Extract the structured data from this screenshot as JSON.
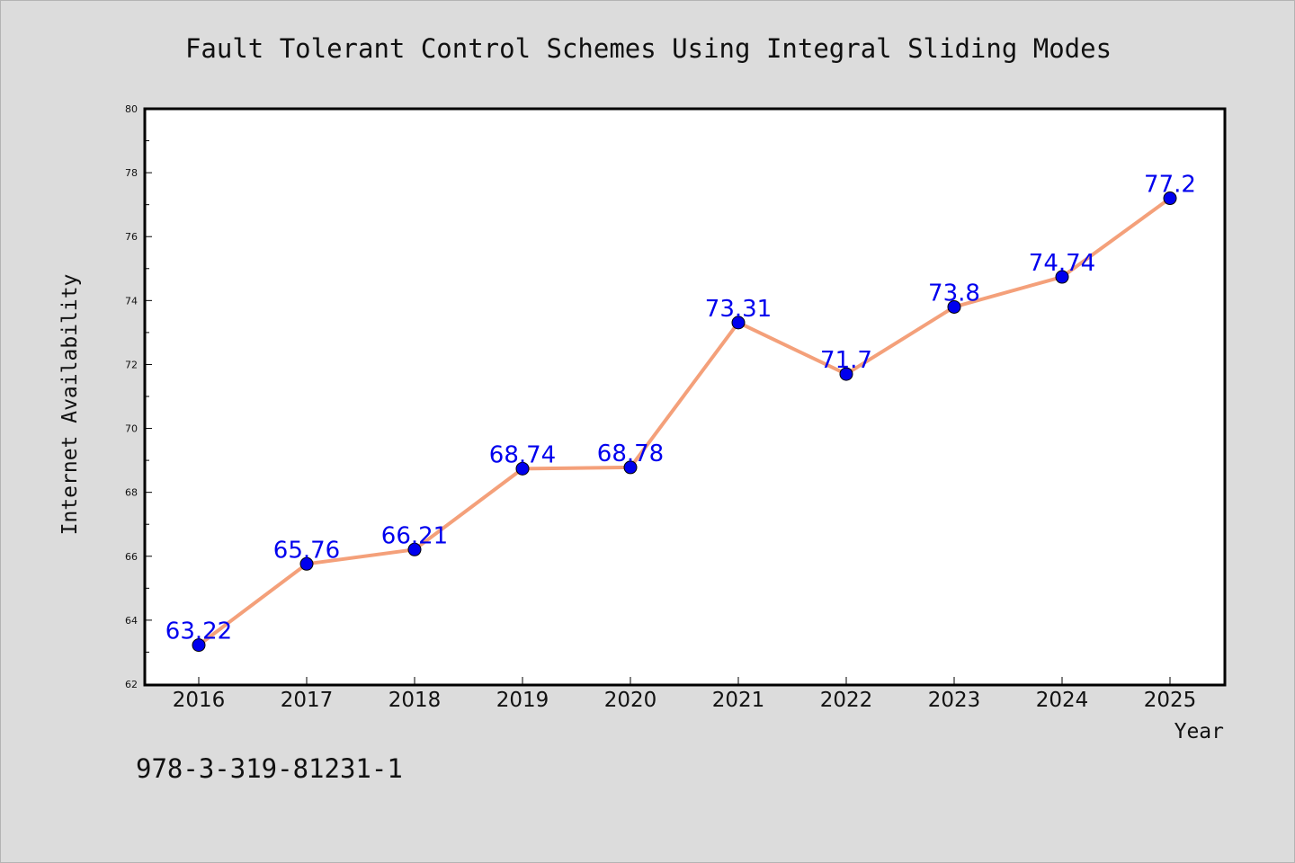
{
  "chart_data": {
    "type": "line",
    "title": "Fault Tolerant Control Schemes Using Integral Sliding Modes",
    "xlabel": "Year",
    "ylabel": "Internet Availability",
    "x": [
      "2016",
      "2017",
      "2018",
      "2019",
      "2020",
      "2021",
      "2022",
      "2023",
      "2024",
      "2025"
    ],
    "series": [
      {
        "values": [
          63.22,
          65.76,
          66.21,
          68.74,
          68.78,
          73.31,
          71.7,
          73.8,
          74.74,
          77.2
        ],
        "labels": [
          "63.22",
          "65.76",
          "66.21",
          "68.74",
          "68.78",
          "73.31",
          "71.7",
          "73.8",
          "74.74",
          "77.2"
        ],
        "line_color": "#f4a07a",
        "marker_color": "#0000ee"
      }
    ],
    "ylim": [
      62,
      80
    ],
    "yticks": [
      "62",
      "64",
      "66",
      "68",
      "70",
      "72",
      "74",
      "76",
      "78",
      "80"
    ],
    "grid": false,
    "legend": false
  },
  "footer": {
    "isbn": "978-3-319-81231-1"
  }
}
